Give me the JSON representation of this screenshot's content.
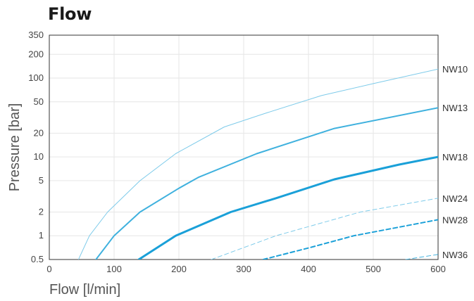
{
  "chart_data": {
    "type": "line",
    "title": "Flow",
    "xlabel": "Flow [l/min]",
    "ylabel": "Pressure [bar]",
    "xlim": [
      0,
      600
    ],
    "ylim": [
      0.5,
      350
    ],
    "yscale": "log",
    "grid": true,
    "x_ticks": [
      0,
      100,
      200,
      300,
      400,
      500,
      600
    ],
    "y_ticks": [
      0.5,
      1,
      2,
      5,
      10,
      20,
      50,
      100,
      200,
      350
    ],
    "x_tick_labels": [
      "0",
      "100",
      "200",
      "300",
      "400",
      "500",
      "600"
    ],
    "y_tick_labels": [
      "0.5",
      "1",
      "2",
      "5",
      "10",
      "20",
      "50",
      "100",
      "200",
      "350"
    ],
    "series": [
      {
        "name": "NW10",
        "color": "#7ecbea",
        "width": 1,
        "dash": "",
        "x": [
          45,
          62,
          90,
          140,
          195,
          270,
          330,
          420,
          500,
          600
        ],
        "y": [
          0.5,
          1,
          2,
          5,
          11,
          24,
          35,
          60,
          85,
          130
        ]
      },
      {
        "name": "NW13",
        "color": "#3fb1de",
        "width": 2,
        "dash": "",
        "x": [
          72,
          100,
          140,
          200,
          230,
          320,
          440,
          600
        ],
        "y": [
          0.5,
          1,
          2,
          4,
          5.5,
          11,
          23,
          42
        ]
      },
      {
        "name": "NW18",
        "color": "#1aa0d8",
        "width": 3,
        "dash": "",
        "x": [
          138,
          195,
          280,
          350,
          440,
          540,
          600
        ],
        "y": [
          0.5,
          1,
          2,
          3,
          5.2,
          8,
          10
        ]
      },
      {
        "name": "NW24",
        "color": "#7ecbea",
        "width": 1,
        "dash": "6,4",
        "x": [
          250,
          350,
          480,
          600
        ],
        "y": [
          0.5,
          1,
          2,
          3
        ]
      },
      {
        "name": "NW28",
        "color": "#1aa0d8",
        "width": 2,
        "dash": "6,4",
        "x": [
          330,
          400,
          470,
          600
        ],
        "y": [
          0.5,
          0.7,
          1,
          1.6
        ]
      },
      {
        "name": "NW36",
        "color": "#3fb1de",
        "width": 1,
        "dash": "6,4",
        "x": [
          550,
          600
        ],
        "y": [
          0.5,
          0.58
        ]
      }
    ]
  }
}
